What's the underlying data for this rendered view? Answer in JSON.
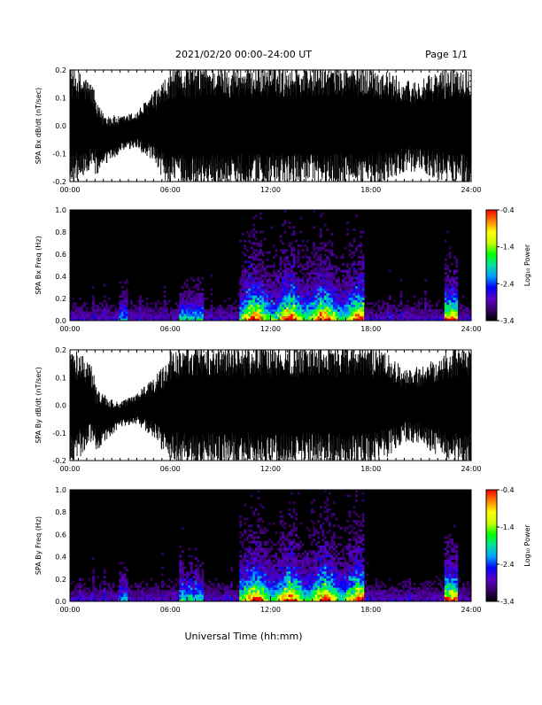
{
  "header": {
    "title": "2021/02/20  00:00–24:00 UT",
    "page": "Page 1/1"
  },
  "footer": {
    "xlabel": "Universal Time (hh:mm)"
  },
  "colorbar": {
    "label": "Log₁₀ Power",
    "ticks": [
      "-0.4",
      "-1.4",
      "-2.4",
      "-3.4"
    ],
    "range": [
      -3.4,
      -0.4
    ],
    "colors": [
      "#000000",
      "#3a006a",
      "#5a00c8",
      "#0000ff",
      "#00a0ff",
      "#00e0a0",
      "#00ff00",
      "#c8ff00",
      "#ffff00",
      "#ff8000",
      "#ff0000"
    ]
  },
  "chart_data": [
    {
      "type": "line",
      "title": "",
      "ylabel": "SPA Bx dB/dt (nT/sec)",
      "xlabel": "",
      "xlim": [
        "00:00",
        "24:00"
      ],
      "ylim": [
        -0.2,
        0.2
      ],
      "x_ticks": [
        "00:00",
        "06:00",
        "12:00",
        "18:00",
        "24:00"
      ],
      "y_ticks": [
        "-0.2",
        "-0.1",
        "0.0",
        "0.1",
        "0.2"
      ],
      "series": [
        {
          "values_description": "dense oscillating signal, amplitude envelope in nT/sec by hour",
          "x_hours": [
            0,
            1,
            2,
            3,
            4,
            5,
            6,
            7,
            8,
            9,
            10,
            11,
            12,
            13,
            14,
            15,
            16,
            17,
            18,
            19,
            20,
            21,
            22,
            23,
            24
          ],
          "amplitude": [
            0.2,
            0.16,
            0.09,
            0.06,
            0.06,
            0.12,
            0.19,
            0.2,
            0.2,
            0.2,
            0.2,
            0.2,
            0.2,
            0.2,
            0.2,
            0.2,
            0.2,
            0.2,
            0.2,
            0.18,
            0.15,
            0.15,
            0.18,
            0.2,
            0.2
          ]
        }
      ]
    },
    {
      "type": "heatmap",
      "title": "",
      "ylabel": "SPA Bx Freq (Hz)",
      "xlabel": "",
      "xlim": [
        "00:00",
        "24:00"
      ],
      "ylim": [
        0.0,
        1.0
      ],
      "x_ticks": [
        "00:00",
        "06:00",
        "12:00",
        "18:00",
        "24:00"
      ],
      "y_ticks": [
        "0.0",
        "0.2",
        "0.4",
        "0.6",
        "0.8",
        "1.0"
      ],
      "colorbar_range": [
        -3.4,
        -0.4
      ]
    },
    {
      "type": "line",
      "title": "",
      "ylabel": "SPA By dB/dt (nT/sec)",
      "xlabel": "",
      "xlim": [
        "00:00",
        "24:00"
      ],
      "ylim": [
        -0.2,
        0.2
      ],
      "x_ticks": [
        "00:00",
        "06:00",
        "12:00",
        "18:00",
        "24:00"
      ],
      "y_ticks": [
        "-0.2",
        "-0.1",
        "0.0",
        "0.1",
        "0.2"
      ],
      "series": [
        {
          "values_description": "dense oscillating signal, amplitude envelope in nT/sec by hour",
          "x_hours": [
            0,
            1,
            2,
            3,
            4,
            5,
            6,
            7,
            8,
            9,
            10,
            11,
            12,
            13,
            14,
            15,
            16,
            17,
            18,
            19,
            20,
            21,
            22,
            23,
            24
          ],
          "amplitude": [
            0.2,
            0.15,
            0.08,
            0.04,
            0.05,
            0.1,
            0.18,
            0.2,
            0.2,
            0.2,
            0.2,
            0.2,
            0.2,
            0.2,
            0.2,
            0.2,
            0.2,
            0.2,
            0.2,
            0.17,
            0.12,
            0.13,
            0.17,
            0.2,
            0.2
          ]
        }
      ]
    },
    {
      "type": "heatmap",
      "title": "",
      "ylabel": "SPA By Freq (Hz)",
      "xlabel": "",
      "xlim": [
        "00:00",
        "24:00"
      ],
      "ylim": [
        0.0,
        1.0
      ],
      "x_ticks": [
        "00:00",
        "06:00",
        "12:00",
        "18:00",
        "24:00"
      ],
      "y_ticks": [
        "0.0",
        "0.2",
        "0.4",
        "0.6",
        "0.8",
        "1.0"
      ],
      "colorbar_range": [
        -3.4,
        -0.4
      ]
    }
  ]
}
